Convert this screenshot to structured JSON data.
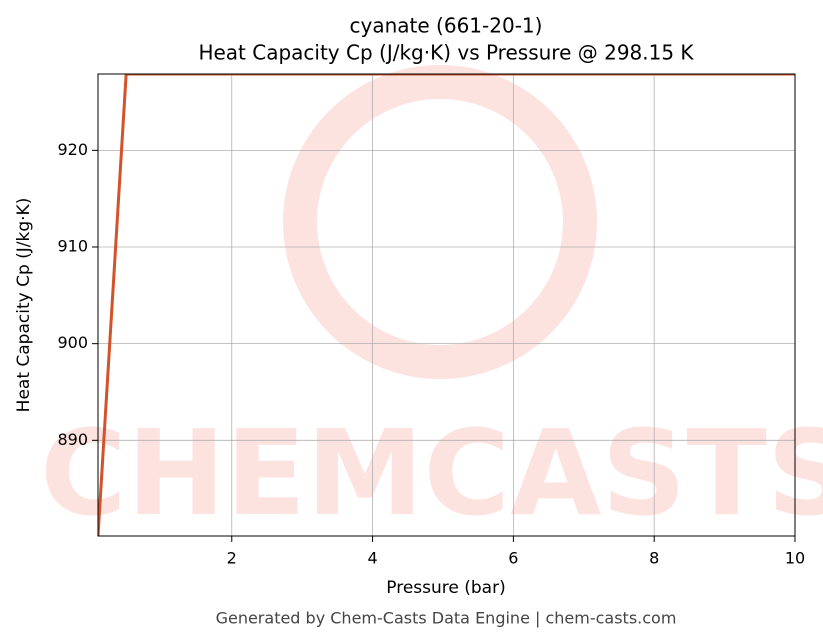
{
  "chart_data": {
    "type": "line",
    "title": "cyanate (661-20-1)",
    "subtitle": "Heat Capacity Cp (J/kg·K) vs Pressure @ 298.15 K",
    "x_label": "Pressure (bar)",
    "y_label": "Heat Capacity Cp (J/kg·K)",
    "footer": "Generated by Chem-Casts Data Engine | chem-casts.com",
    "watermark": "CHEMCASTS",
    "x": [
      0.1,
      0.5,
      10
    ],
    "series": [
      {
        "name": "Cp",
        "color": "#d2532a",
        "values": [
          880.1,
          927.9,
          927.9
        ]
      }
    ],
    "xlim": [
      0.1,
      10
    ],
    "xticks": [
      2,
      4,
      6,
      8,
      10
    ],
    "ylim": [
      880.1,
      927.9
    ],
    "yticks": [
      890,
      900,
      910,
      920
    ],
    "grid": true
  }
}
